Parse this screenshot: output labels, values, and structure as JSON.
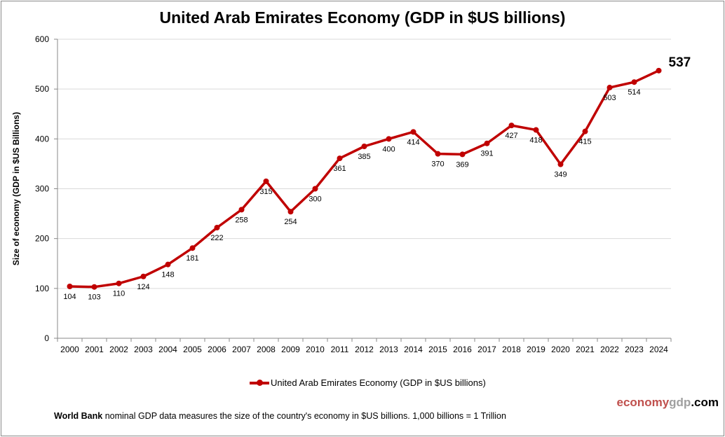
{
  "chart_data": {
    "type": "line",
    "title": "United Arab Emirates Economy (GDP in $US billions)",
    "ylabel": "Size of economy (GDP in $US Billions)",
    "xlabel": "",
    "ylim": [
      0,
      600
    ],
    "yticks": [
      0,
      100,
      200,
      300,
      400,
      500,
      600
    ],
    "grid": true,
    "legend_placement": "bottom",
    "categories": [
      "2000",
      "2001",
      "2002",
      "2003",
      "2004",
      "2005",
      "2006",
      "2007",
      "2008",
      "2009",
      "2010",
      "2011",
      "2012",
      "2013",
      "2014",
      "2015",
      "2016",
      "2017",
      "2018",
      "2019",
      "2020",
      "2021",
      "2022",
      "2023",
      "2024"
    ],
    "series": [
      {
        "name": "United Arab Emirates Economy (GDP in $US billions)",
        "color": "#c00000",
        "values": [
          104,
          103,
          110,
          124,
          148,
          181,
          222,
          258,
          315,
          254,
          300,
          361,
          385,
          400,
          414,
          370,
          369,
          391,
          427,
          418,
          349,
          415,
          503,
          514,
          537
        ]
      }
    ]
  },
  "brand": {
    "part1": "economy",
    "part2": "gdp",
    "part3": ".com"
  },
  "footer": {
    "bold": "World Bank",
    "text": " nominal GDP data  measures the size of the country's economy in $US billions. 1,000 billions = 1 Trillion"
  }
}
